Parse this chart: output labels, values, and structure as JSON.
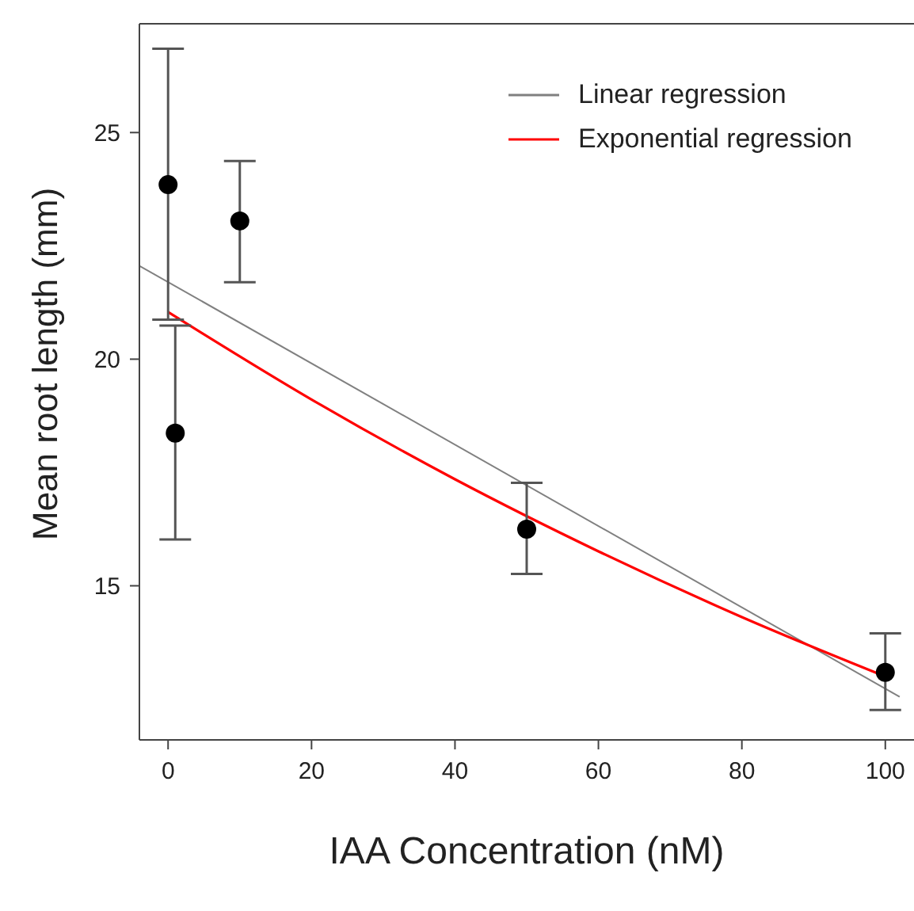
{
  "chart_data": {
    "type": "scatter",
    "xlabel": "IAA Concentration (nM)",
    "ylabel": "Mean root length (mm)",
    "xlim": [
      -4,
      104
    ],
    "xticks": [
      0,
      20,
      40,
      60,
      80,
      100
    ],
    "ylim": [
      11.6,
      27.4
    ],
    "yticks": [
      15,
      20,
      25
    ],
    "grid": false,
    "legend": "top right",
    "series": [
      {
        "marker": "circle",
        "color": "#000000",
        "x": [
          0,
          1,
          10,
          50,
          100
        ],
        "values": [
          23.85,
          18.37,
          23.05,
          16.25,
          13.09
        ],
        "errors": [
          [
            20.87,
            26.85
          ],
          [
            16.02,
            20.74
          ],
          [
            21.7,
            24.37
          ],
          [
            15.26,
            17.27
          ],
          [
            12.26,
            13.95
          ]
        ]
      },
      {
        "type": "line",
        "marker": "none",
        "name": "Linear regression",
        "color": "#808080",
        "x": [
          -4,
          102
        ],
        "values": [
          22.06,
          12.55
        ]
      },
      {
        "type": "line",
        "marker": "none",
        "name": "Exponential regression",
        "color": "#ff0000",
        "x": [
          0,
          20,
          40,
          60,
          80,
          100
        ],
        "values": [
          21.04,
          19.11,
          17.35,
          15.76,
          14.31,
          13.0
        ]
      }
    ]
  }
}
